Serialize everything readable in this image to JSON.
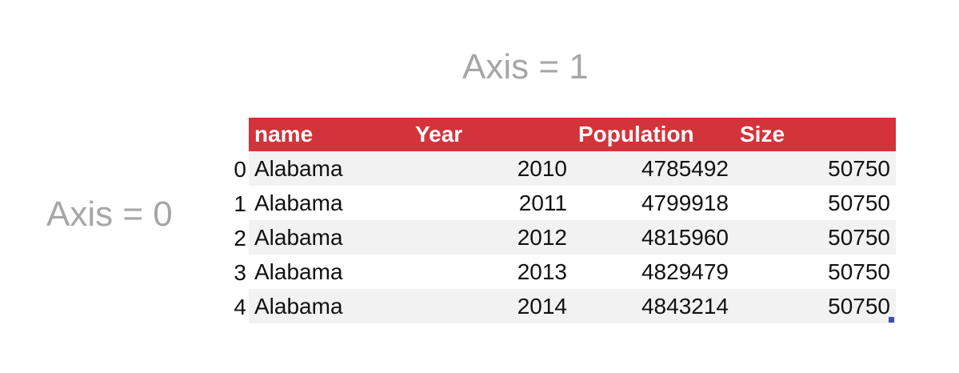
{
  "axis_labels": {
    "columns": "Axis = 1",
    "rows": "Axis = 0"
  },
  "colors": {
    "header_bg": "#d3333a",
    "header_text": "#ffffff",
    "stripe": "#f2f2f2",
    "axis_text": "#a6a6a6"
  },
  "table": {
    "headers": [
      "name",
      "Year",
      "Population",
      "Size"
    ],
    "index": [
      "0",
      "1",
      "2",
      "3",
      "4"
    ],
    "rows": [
      [
        "Alabama",
        "2010",
        "4785492",
        "50750"
      ],
      [
        "Alabama",
        "2011",
        "4799918",
        "50750"
      ],
      [
        "Alabama",
        "2012",
        "4815960",
        "50750"
      ],
      [
        "Alabama",
        "2013",
        "4829479",
        "50750"
      ],
      [
        "Alabama",
        "2014",
        "4843214",
        "50750"
      ]
    ]
  }
}
